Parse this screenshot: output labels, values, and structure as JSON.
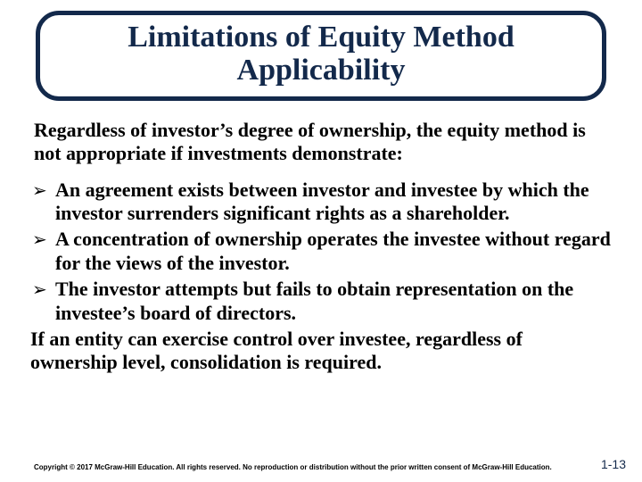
{
  "title_line1": "Limitations of Equity Method",
  "title_line2": "Applicability",
  "intro": "Regardless of investor’s degree of ownership, the equity method is not appropriate if investments demonstrate:",
  "bullets": [
    "An agreement exists between investor and investee by which the investor surrenders significant rights as a shareholder.",
    "A concentration of ownership operates the investee without regard for the views of the investor.",
    "The investor attempts but fails to obtain representation on the investee’s board of directors."
  ],
  "closing": "If an entity can exercise control over investee, regardless of ownership level, consolidation is required.",
  "copyright": "Copyright © 2017 McGraw-Hill Education. All rights reserved. No reproduction or distribution without the prior written consent of McGraw-Hill Education.",
  "page_number": "1-13",
  "colors": {
    "title_navy": "#13294b",
    "text_black": "#000000",
    "background": "#ffffff"
  },
  "bullet_glyph": "➢"
}
